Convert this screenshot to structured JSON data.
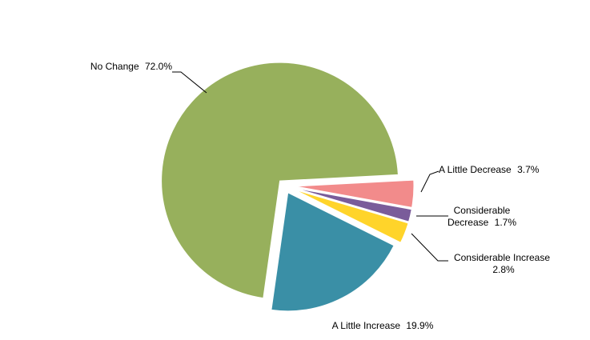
{
  "chart_data": {
    "type": "pie",
    "categories": [
      "A Little Decrease",
      "Considerable Decrease",
      "Considerable Increase",
      "A Little Increase",
      "No Change"
    ],
    "values": [
      3.7,
      1.7,
      2.8,
      19.9,
      72.0
    ],
    "value_labels": [
      "3.7%",
      "1.7%",
      "2.8%",
      "19.9%",
      "72.0%"
    ],
    "colors": [
      "#f28b8b",
      "#7a5c9a",
      "#ffd42a",
      "#3a8fa6",
      "#97b05c"
    ]
  }
}
